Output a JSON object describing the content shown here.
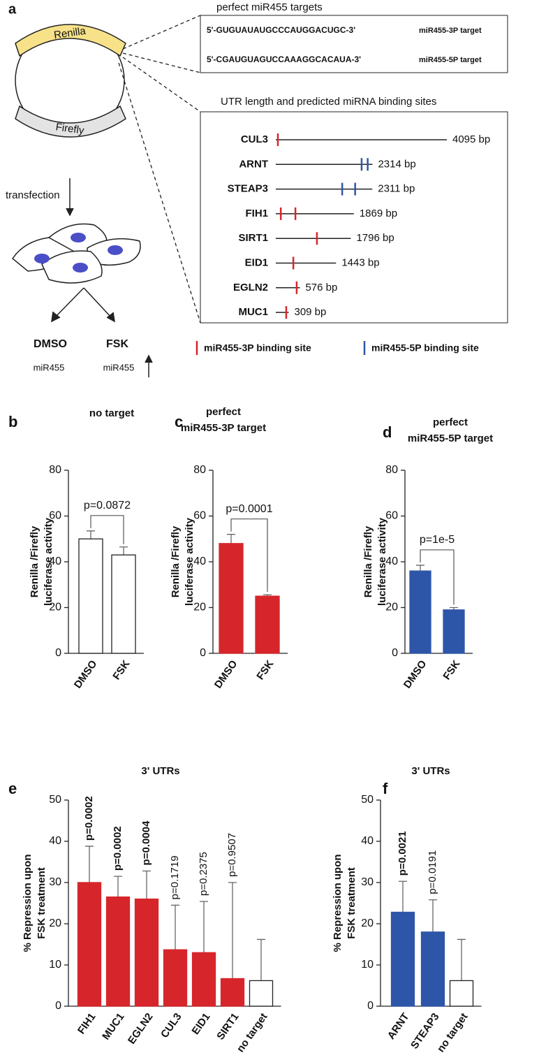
{
  "panel_a": {
    "letter": "a",
    "plasmid": {
      "renilla": "Renilla",
      "firefly": "Firefly"
    },
    "transfection": "transfection",
    "conditions": [
      "DMSO",
      "FSK"
    ],
    "mirna": [
      "miR455",
      "miR455"
    ],
    "targets": {
      "title": "perfect miR455 targets",
      "rows": [
        {
          "sequence": "5'-GUGUAUAUGCCCAUGGACUGC-3'",
          "label": "miR455-3P target"
        },
        {
          "sequence": "5'-CGAUGUAGUCCAAAGGCACAUA-3'",
          "label": "miR455-5P target"
        }
      ]
    },
    "utr": {
      "title": "UTR length and predicted miRNA binding sites",
      "genes": [
        {
          "name": "CUL3",
          "length": 4095,
          "length_label": "4095 bp",
          "sites_3p": [
            50
          ],
          "sites_5p": []
        },
        {
          "name": "ARNT",
          "length": 2314,
          "length_label": "2314 bp",
          "sites_3p": [],
          "sites_5p": [
            2055,
            2200
          ]
        },
        {
          "name": "STEAP3",
          "length": 2311,
          "length_label": "2311 bp",
          "sites_3p": [],
          "sites_5p": [
            1590,
            1900
          ]
        },
        {
          "name": "FIH1",
          "length": 1869,
          "length_label": "1869 bp",
          "sites_3p": [
            120,
            470
          ],
          "sites_5p": []
        },
        {
          "name": "SIRT1",
          "length": 1796,
          "length_label": "1796 bp",
          "sites_3p": [
            985
          ],
          "sites_5p": []
        },
        {
          "name": "EID1",
          "length": 1443,
          "length_label": "1443 bp",
          "sites_3p": [
            420
          ],
          "sites_5p": []
        },
        {
          "name": "EGLN2",
          "length": 576,
          "length_label": "576 bp",
          "sites_3p": [
            500
          ],
          "sites_5p": []
        },
        {
          "name": "MUC1",
          "length": 309,
          "length_label": "309 bp",
          "sites_3p": [
            250
          ],
          "sites_5p": []
        }
      ]
    },
    "legend": [
      {
        "label": "miR455-3P binding site",
        "color": "#d6262b"
      },
      {
        "label": "miR455-5P binding site",
        "color": "#2e56a8"
      }
    ]
  },
  "chart_data": [
    {
      "type": "bar",
      "panel": "b",
      "title": [
        "no target"
      ],
      "ylabel": [
        "Renilla /Firefly",
        "luciferase activity"
      ],
      "categories": [
        "DMSO",
        "FSK"
      ],
      "values": [
        50,
        43
      ],
      "errors": [
        3.5,
        3.5
      ],
      "colors": [
        "#ffffff",
        "#ffffff"
      ],
      "annotation": "p=0.0872",
      "ylim": [
        0,
        80
      ],
      "yticks": [
        0,
        20,
        40,
        60,
        80
      ]
    },
    {
      "type": "bar",
      "panel": "c",
      "title": [
        "perfect",
        "miR455-3P target"
      ],
      "ylabel": [
        "Renilla /Firefly",
        "luciferase activity"
      ],
      "categories": [
        "DMSO",
        "FSK"
      ],
      "values": [
        48,
        25
      ],
      "errors": [
        4,
        0.6
      ],
      "colors": [
        "#d6262b",
        "#d6262b"
      ],
      "annotation": "p=0.0001",
      "ylim": [
        0,
        80
      ],
      "yticks": [
        0,
        20,
        40,
        60,
        80
      ]
    },
    {
      "type": "bar",
      "panel": "d",
      "title": [
        "perfect",
        "miR455-5P target"
      ],
      "ylabel": [
        "Renilla /Firefly",
        "luciferase activity"
      ],
      "categories": [
        "DMSO",
        "FSK"
      ],
      "values": [
        36,
        19
      ],
      "errors": [
        2.5,
        1
      ],
      "colors": [
        "#2e56a8",
        "#2e56a8"
      ],
      "annotation": "p=1e-5",
      "ylim": [
        0,
        80
      ],
      "yticks": [
        0,
        20,
        40,
        60,
        80
      ]
    },
    {
      "type": "bar",
      "panel": "e",
      "title": [
        "3' UTRs"
      ],
      "ylabel": [
        "% Repression upon",
        "FSK treatment"
      ],
      "categories": [
        "FIH1",
        "MUC1",
        "EGLN2",
        "CUL3",
        "EID1",
        "SIRT1",
        "no target"
      ],
      "values": [
        30,
        26.5,
        26,
        13.7,
        13,
        6.7,
        6.2
      ],
      "errors": [
        8.8,
        5,
        6.8,
        10.8,
        12.4,
        23.3,
        10
      ],
      "colors": [
        "#d6262b",
        "#d6262b",
        "#d6262b",
        "#d6262b",
        "#d6262b",
        "#d6262b",
        "#ffffff"
      ],
      "p_values": [
        "p=0.0002",
        "p=0.0002",
        "p=0.0004",
        "p=0.1719",
        "p=0.2375",
        "p=0.9507",
        null
      ],
      "p_bold": [
        true,
        true,
        true,
        false,
        false,
        false,
        false
      ],
      "ylim": [
        0,
        50
      ],
      "yticks": [
        0,
        10,
        20,
        30,
        40,
        50
      ]
    },
    {
      "type": "bar",
      "panel": "f",
      "title": [
        "3' UTRs"
      ],
      "ylabel": [
        "% Repression upon",
        "FSK treatment"
      ],
      "categories": [
        "ARNT",
        "STEAP3",
        "no target"
      ],
      "values": [
        22.8,
        18,
        6.2
      ],
      "errors": [
        7.5,
        7.8,
        10
      ],
      "colors": [
        "#2e56a8",
        "#2e56a8",
        "#ffffff"
      ],
      "p_values": [
        "p=0.0021",
        "p=0.0191",
        null
      ],
      "p_bold": [
        true,
        false,
        false
      ],
      "ylim": [
        0,
        50
      ],
      "yticks": [
        0,
        10,
        20,
        30,
        40,
        50
      ]
    }
  ]
}
